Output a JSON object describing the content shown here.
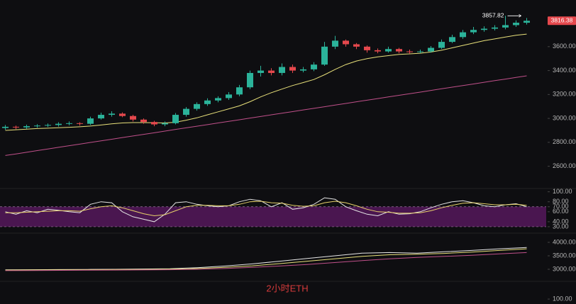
{
  "chart_data": [
    {
      "type": "candlestick",
      "title": "2小时ETH",
      "title_color": "#d63b3b",
      "up_color": "#2bb39a",
      "down_color": "#e5484d",
      "ylim": [
        2420,
        3990
      ],
      "yticks": [
        {
          "value": 2600,
          "label": "2600.00"
        },
        {
          "value": 2800,
          "label": "2800.00"
        },
        {
          "value": 3000,
          "label": "3000.00"
        },
        {
          "value": 3200,
          "label": "3200.00"
        },
        {
          "value": 3400,
          "label": "3400.00"
        },
        {
          "value": 3600,
          "label": "3600.00"
        }
      ],
      "open": [
        2920,
        2930,
        2925,
        2935,
        2940,
        2945,
        2955,
        2960,
        2955,
        3000,
        3030,
        3040,
        3020,
        2990,
        2970,
        2950,
        2960,
        3030,
        3080,
        3120,
        3150,
        3170,
        3200,
        3260,
        3380,
        3400,
        3380,
        3430,
        3400,
        3410,
        3450,
        3600,
        3650,
        3620,
        3600,
        3570,
        3560,
        3580,
        3560,
        3555,
        3560,
        3590,
        3640,
        3680,
        3720,
        3740,
        3750,
        3760,
        3780,
        3800
      ],
      "high": [
        2945,
        2940,
        2948,
        2952,
        2958,
        2968,
        2975,
        2968,
        3015,
        3048,
        3060,
        3050,
        3030,
        3000,
        2980,
        2975,
        3045,
        3095,
        3135,
        3168,
        3185,
        3220,
        3280,
        3400,
        3440,
        3420,
        3460,
        3450,
        3430,
        3470,
        3640,
        3690,
        3660,
        3630,
        3610,
        3585,
        3600,
        3590,
        3575,
        3575,
        3605,
        3660,
        3700,
        3740,
        3765,
        3770,
        3780,
        3857.82,
        3820,
        3840
      ],
      "low": [
        2905,
        2910,
        2912,
        2922,
        2928,
        2932,
        2942,
        2940,
        2945,
        2990,
        3015,
        3010,
        2975,
        2955,
        2935,
        2935,
        2950,
        3015,
        3065,
        3105,
        3135,
        3155,
        3185,
        3245,
        3350,
        3360,
        3360,
        3380,
        3385,
        3395,
        3440,
        3580,
        3600,
        3580,
        3550,
        3545,
        3550,
        3545,
        3540,
        3545,
        3550,
        3580,
        3630,
        3665,
        3705,
        3725,
        3735,
        3745,
        3765,
        3785
      ],
      "close": [
        2930,
        2925,
        2935,
        2940,
        2945,
        2955,
        2960,
        2955,
        3000,
        3030,
        3040,
        3020,
        2990,
        2970,
        2950,
        2960,
        3030,
        3080,
        3120,
        3150,
        3170,
        3200,
        3260,
        3380,
        3400,
        3380,
        3430,
        3400,
        3410,
        3450,
        3600,
        3650,
        3620,
        3600,
        3570,
        3560,
        3580,
        3560,
        3555,
        3560,
        3590,
        3640,
        3680,
        3720,
        3740,
        3750,
        3760,
        3780,
        3800,
        3816.38
      ],
      "overlays": [
        {
          "color": "#e8e07a",
          "values": [
            2900,
            2905,
            2910,
            2915,
            2918,
            2922,
            2926,
            2930,
            2936,
            2945,
            2955,
            2962,
            2965,
            2965,
            2963,
            2962,
            2968,
            2985,
            3005,
            3030,
            3055,
            3080,
            3105,
            3140,
            3180,
            3215,
            3245,
            3275,
            3300,
            3325,
            3365,
            3410,
            3450,
            3480,
            3500,
            3515,
            3525,
            3535,
            3540,
            3545,
            3555,
            3570,
            3590,
            3610,
            3630,
            3650,
            3665,
            3680,
            3695,
            3705
          ]
        },
        {
          "color": "#c0508a",
          "values": [
            2690,
            2703,
            2717,
            2731,
            2744,
            2758,
            2772,
            2785,
            2799,
            2812,
            2826,
            2840,
            2853,
            2867,
            2880,
            2894,
            2908,
            2921,
            2935,
            2948,
            2962,
            2976,
            2989,
            3003,
            3016,
            3030,
            3044,
            3057,
            3071,
            3084,
            3098,
            3112,
            3125,
            3139,
            3152,
            3166,
            3180,
            3193,
            3207,
            3220,
            3234,
            3248,
            3261,
            3275,
            3288,
            3302,
            3316,
            3329,
            3343,
            3356
          ]
        }
      ]
    },
    {
      "type": "line",
      "ylim": [
        20,
        108
      ],
      "yticks": [
        {
          "value": 100,
          "label": "100.00"
        },
        {
          "value": 80,
          "label": "80.00"
        },
        {
          "value": 70,
          "label": "70.00"
        },
        {
          "value": 60,
          "label": "60.00"
        },
        {
          "value": 40,
          "label": "40.00"
        },
        {
          "value": 30,
          "label": "30.00"
        }
      ],
      "band": [
        30,
        70
      ],
      "band_color": "#4a1650",
      "series": [
        {
          "color": "#e6e6e6",
          "values": [
            60,
            55,
            62,
            58,
            65,
            63,
            60,
            58,
            75,
            80,
            78,
            60,
            50,
            45,
            40,
            55,
            78,
            80,
            75,
            72,
            70,
            72,
            80,
            85,
            82,
            70,
            78,
            65,
            68,
            75,
            88,
            85,
            70,
            62,
            55,
            52,
            60,
            55,
            56,
            60,
            68,
            75,
            80,
            82,
            78,
            72,
            70,
            74,
            76,
            70
          ]
        },
        {
          "color": "#e8d26a",
          "values": [
            58,
            58,
            59,
            60,
            61,
            62,
            62,
            61,
            66,
            70,
            72,
            68,
            62,
            56,
            52,
            54,
            62,
            70,
            73,
            73,
            72,
            72,
            75,
            80,
            81,
            78,
            77,
            73,
            71,
            72,
            78,
            81,
            78,
            72,
            65,
            60,
            59,
            57,
            57,
            58,
            62,
            68,
            73,
            77,
            78,
            76,
            74,
            74,
            75,
            73
          ]
        }
      ]
    },
    {
      "type": "line",
      "ylim": [
        2605,
        4316
      ],
      "yticks": [
        {
          "value": 3000,
          "label": "3000.00"
        },
        {
          "value": 3500,
          "label": "3500.00"
        },
        {
          "value": 4000,
          "label": "4000.00"
        }
      ],
      "series": [
        {
          "color": "#e6e6e6",
          "values": [
            2980,
            2985,
            2990,
            2995,
            3000,
            3010,
            3020,
            3060,
            3120,
            3200,
            3300,
            3400,
            3500,
            3600,
            3620,
            3600,
            3650,
            3700,
            3760,
            3810
          ]
        },
        {
          "color": "#e8e07a",
          "values": [
            2970,
            2975,
            2980,
            2985,
            2990,
            2995,
            3005,
            3030,
            3070,
            3130,
            3210,
            3300,
            3390,
            3480,
            3540,
            3560,
            3590,
            3640,
            3700,
            3760
          ]
        },
        {
          "color": "#c0508a",
          "values": [
            2950,
            2955,
            2960,
            2965,
            2970,
            2975,
            2985,
            3000,
            3030,
            3070,
            3120,
            3180,
            3250,
            3320,
            3390,
            3440,
            3480,
            3520,
            3570,
            3620
          ]
        }
      ]
    },
    {
      "type": "line",
      "ylim": [
        0,
        146
      ],
      "yticks": [
        {
          "value": 100,
          "label": "100.00"
        }
      ]
    }
  ]
}
